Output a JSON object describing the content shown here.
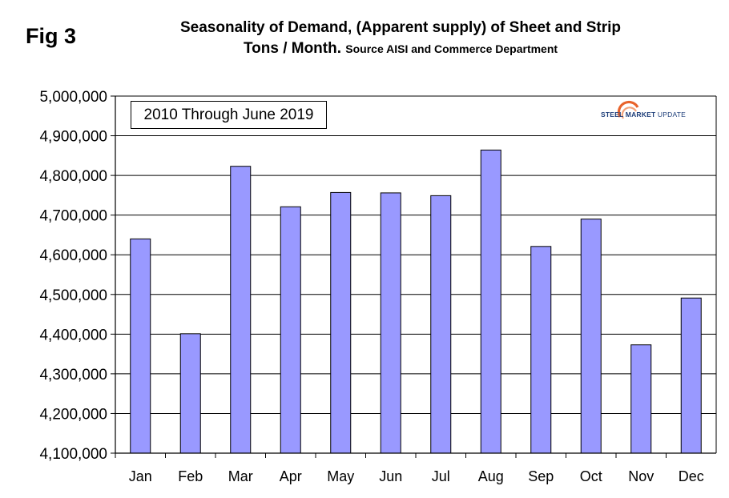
{
  "figure": {
    "label": "Fig 3",
    "title_line1": "Seasonality of Demand, (Apparent supply) of Sheet and Strip",
    "title_line2_main": "Tons / Month.",
    "title_line2_source": "Source AISI and Commerce Department"
  },
  "annotation": {
    "text": "2010 Through June 2019"
  },
  "logo": {
    "strong_text": "STEEL MARKET",
    "light_text": "UPDATE",
    "icon": "steel-market-update-logo-icon",
    "colors": {
      "primary": "#1f3f7a",
      "accent": "#e8632b"
    }
  },
  "chart_data": {
    "type": "bar",
    "categories": [
      "Jan",
      "Feb",
      "Mar",
      "Apr",
      "May",
      "Jun",
      "Jul",
      "Aug",
      "Sep",
      "Oct",
      "Nov",
      "Dec"
    ],
    "values": [
      4640000,
      4401000,
      4823000,
      4721000,
      4757000,
      4756000,
      4749000,
      4864000,
      4621000,
      4690000,
      4373000,
      4491000
    ],
    "title": "Seasonality of Demand, (Apparent supply) of Sheet and Strip",
    "xlabel": "",
    "ylabel": "",
    "ylim": [
      4100000,
      5000000
    ],
    "yticks": [
      4100000,
      4200000,
      4300000,
      4400000,
      4500000,
      4600000,
      4700000,
      4800000,
      4900000,
      5000000
    ],
    "ytick_labels": [
      "4,100,000",
      "4,200,000",
      "4,300,000",
      "4,400,000",
      "4,500,000",
      "4,600,000",
      "4,700,000",
      "4,800,000",
      "4,900,000",
      "5,000,000"
    ],
    "grid": true,
    "legend": "none",
    "colors": {
      "bar_fill": "#9999ff",
      "bar_stroke": "#000000",
      "grid": "#000000"
    }
  }
}
